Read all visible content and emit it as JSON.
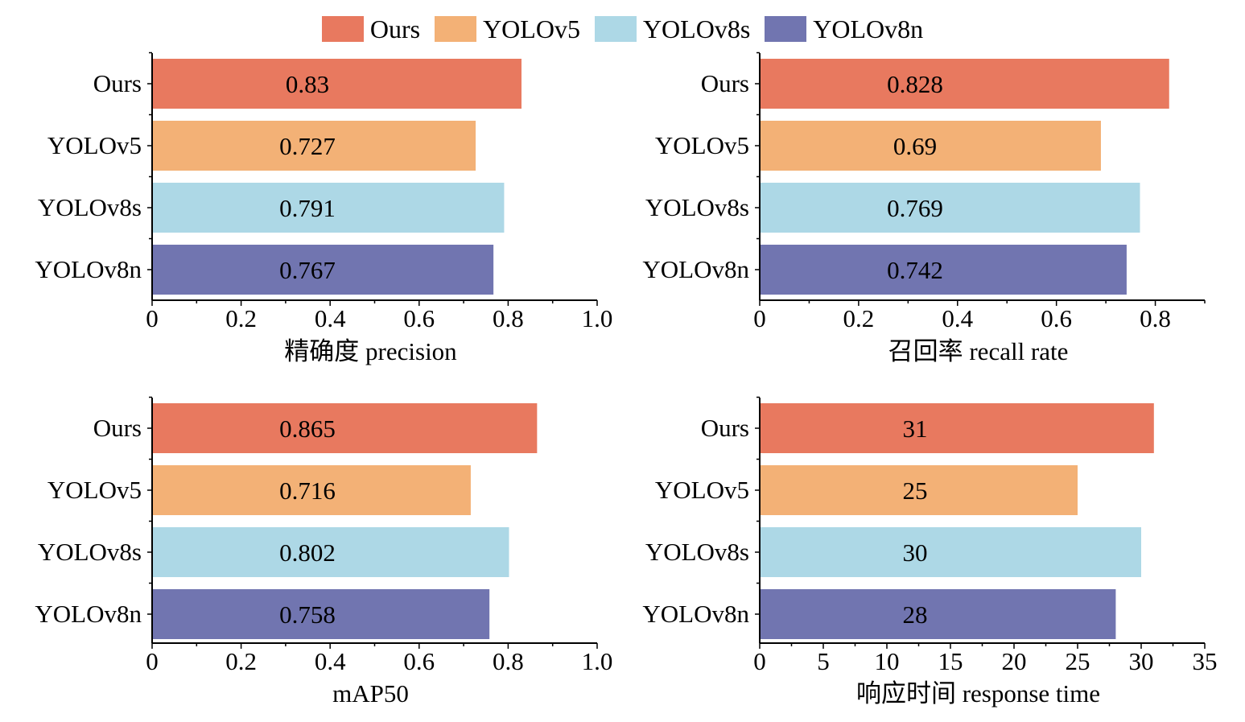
{
  "legend": {
    "items": [
      {
        "label": "Ours",
        "color": "#E8795F"
      },
      {
        "label": "YOLOv5",
        "color": "#F3B176"
      },
      {
        "label": "YOLOv8s",
        "color": "#ADD8E6"
      },
      {
        "label": "YOLOv8n",
        "color": "#7175B0"
      }
    ]
  },
  "chart_data": [
    {
      "type": "bar",
      "orientation": "horizontal",
      "categories": [
        "Ours",
        "YOLOv5",
        "YOLOv8s",
        "YOLOv8n"
      ],
      "values": [
        0.83,
        0.727,
        0.791,
        0.767
      ],
      "value_labels": [
        "0.83",
        "0.727",
        "0.791",
        "0.767"
      ],
      "xlabel": "精确度 precision",
      "xlim": [
        0,
        1.0
      ],
      "xticks": [
        0,
        0.2,
        0.4,
        0.6,
        0.8,
        1.0
      ],
      "xtick_labels": [
        "0",
        "0.2",
        "0.4",
        "0.6",
        "0.8",
        "1.0"
      ],
      "colors": [
        "#E8795F",
        "#F3B176",
        "#ADD8E6",
        "#7175B0"
      ]
    },
    {
      "type": "bar",
      "orientation": "horizontal",
      "categories": [
        "Ours",
        "YOLOv5",
        "YOLOv8s",
        "YOLOv8n"
      ],
      "values": [
        0.828,
        0.69,
        0.769,
        0.742
      ],
      "value_labels": [
        "0.828",
        "0.69",
        "0.769",
        "0.742"
      ],
      "xlabel": "召回率 recall rate",
      "xlim": [
        0,
        0.9
      ],
      "xticks": [
        0,
        0.2,
        0.4,
        0.6,
        0.8
      ],
      "xtick_labels": [
        "0",
        "0.2",
        "0.4",
        "0.6",
        "0.8"
      ],
      "colors": [
        "#E8795F",
        "#F3B176",
        "#ADD8E6",
        "#7175B0"
      ]
    },
    {
      "type": "bar",
      "orientation": "horizontal",
      "categories": [
        "Ours",
        "YOLOv5",
        "YOLOv8s",
        "YOLOv8n"
      ],
      "values": [
        0.865,
        0.716,
        0.802,
        0.758
      ],
      "value_labels": [
        "0.865",
        "0.716",
        "0.802",
        "0.758"
      ],
      "xlabel": "mAP50",
      "xlim": [
        0,
        1.0
      ],
      "xticks": [
        0,
        0.2,
        0.4,
        0.6,
        0.8,
        1.0
      ],
      "xtick_labels": [
        "0",
        "0.2",
        "0.4",
        "0.6",
        "0.8",
        "1.0"
      ],
      "colors": [
        "#E8795F",
        "#F3B176",
        "#ADD8E6",
        "#7175B0"
      ]
    },
    {
      "type": "bar",
      "orientation": "horizontal",
      "categories": [
        "Ours",
        "YOLOv5",
        "YOLOv8s",
        "YOLOv8n"
      ],
      "values": [
        31,
        25,
        30,
        28
      ],
      "value_labels": [
        "31",
        "25",
        "30",
        "28"
      ],
      "xlabel": "响应时间 response time",
      "xlim": [
        0,
        35
      ],
      "xticks": [
        0,
        5,
        10,
        15,
        20,
        25,
        30,
        35
      ],
      "xtick_labels": [
        "0",
        "5",
        "10",
        "15",
        "20",
        "25",
        "30",
        "35"
      ],
      "colors": [
        "#E8795F",
        "#F3B176",
        "#ADD8E6",
        "#7175B0"
      ]
    }
  ]
}
